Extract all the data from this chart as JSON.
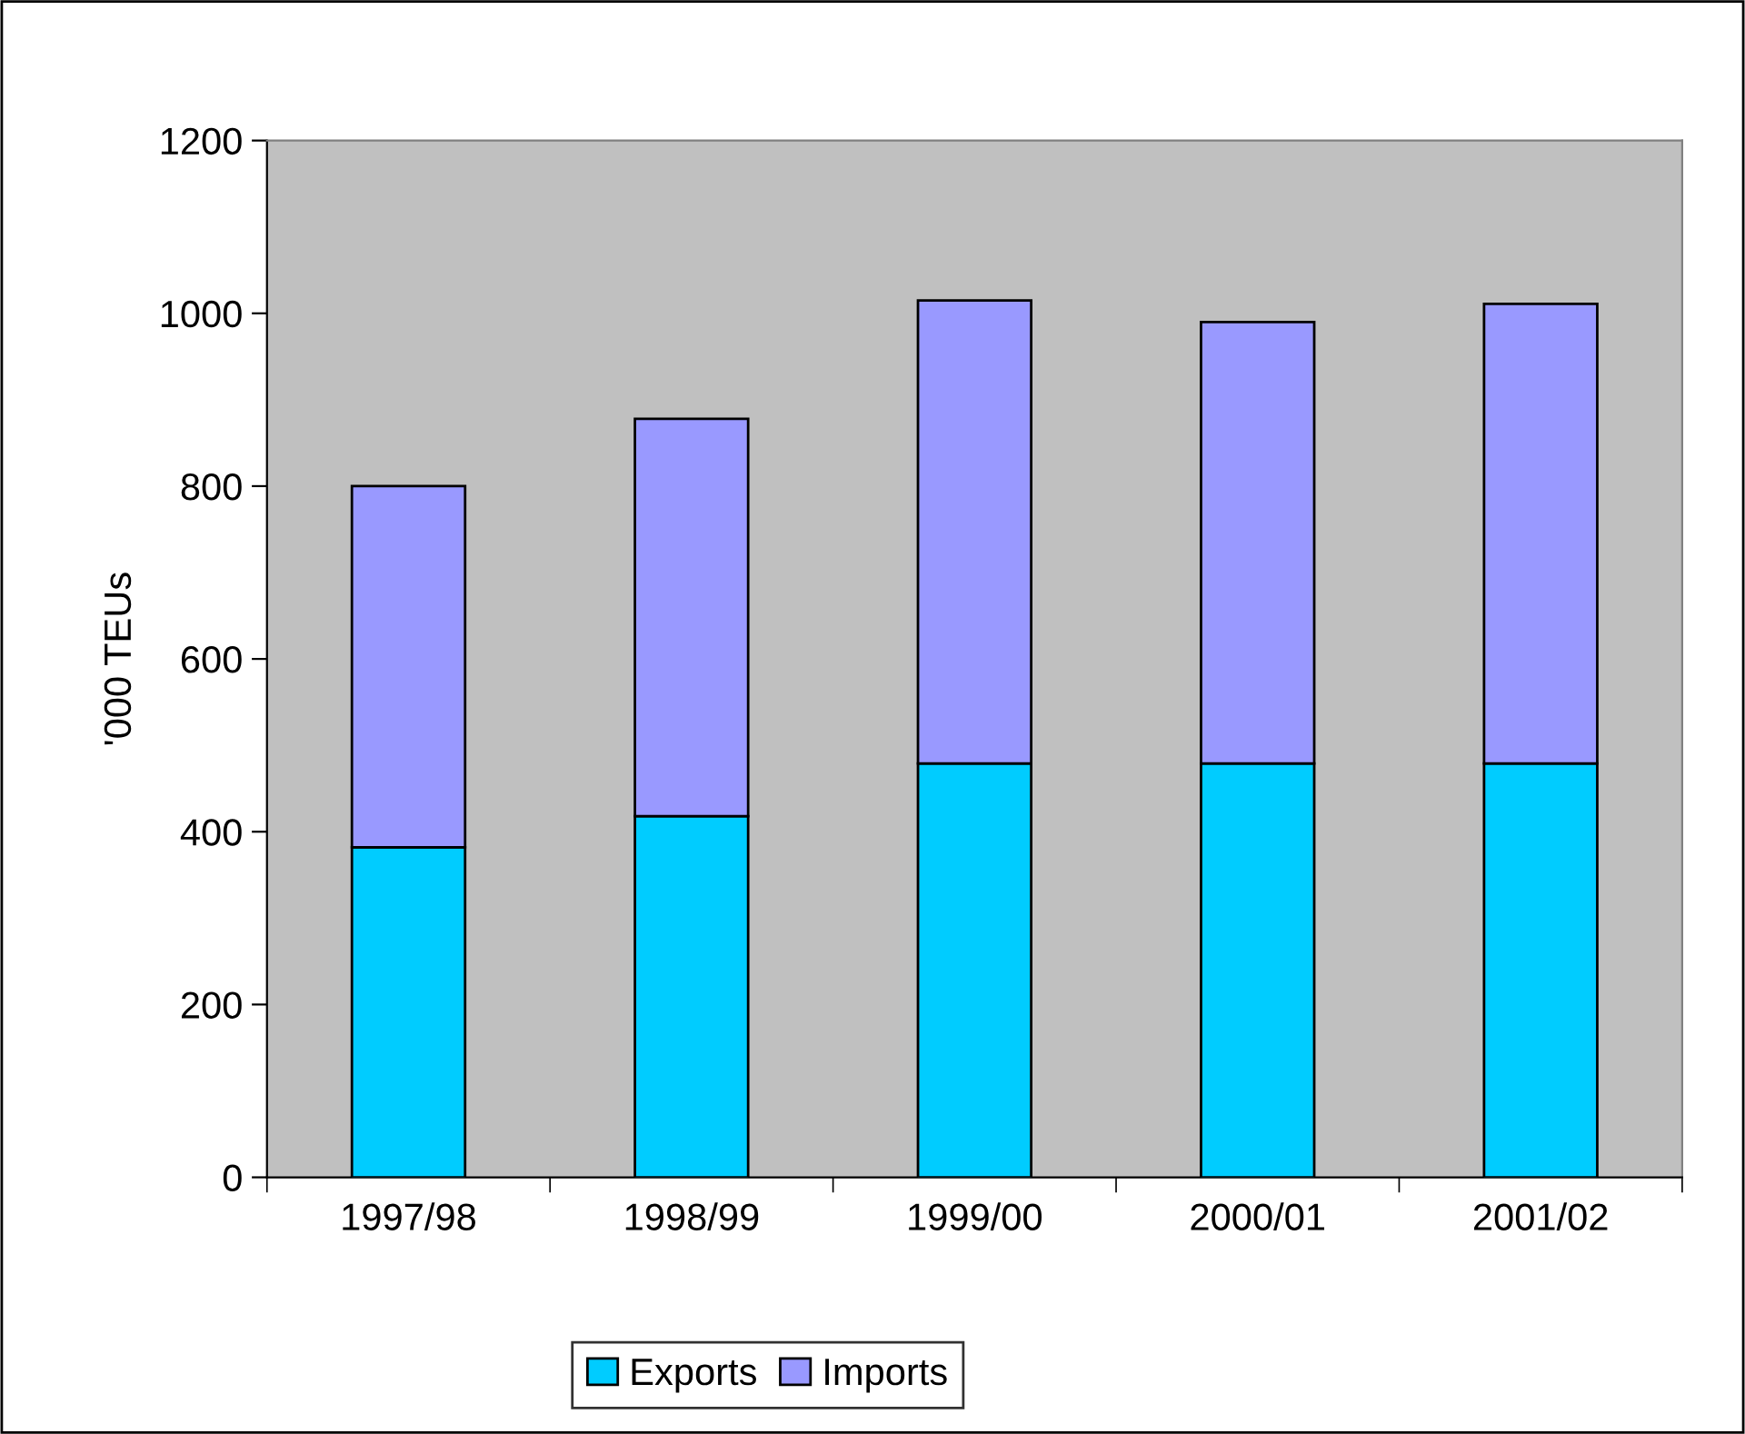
{
  "chart_data": {
    "type": "bar",
    "stacked": true,
    "ylabel": "'000 TEUs",
    "categories": [
      "1997/98",
      "1998/99",
      "1999/00",
      "2000/01",
      "2001/02"
    ],
    "series": [
      {
        "name": "Exports",
        "color": "#00ccff",
        "values": [
          382,
          418,
          479,
          479,
          479
        ]
      },
      {
        "name": "Imports",
        "color": "#9999ff",
        "values": [
          418,
          460,
          536,
          511,
          532
        ]
      }
    ],
    "ylim": [
      0,
      1200
    ],
    "yticks": [
      0,
      200,
      400,
      600,
      800,
      1000,
      1200
    ],
    "grid": false,
    "legend": "bottom"
  }
}
